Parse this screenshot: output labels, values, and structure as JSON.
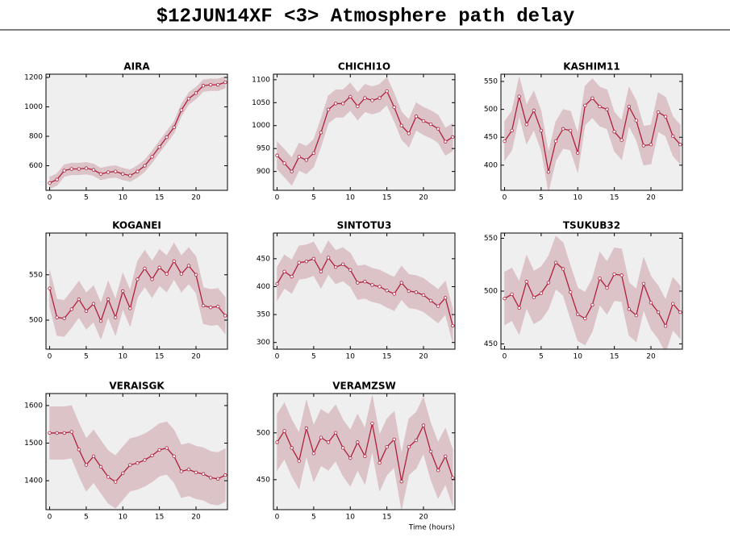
{
  "title": "$12JUN14XF <3>  Atmosphere path delay",
  "chart_data": [
    {
      "type": "line",
      "title": "AIRA",
      "color": "#b0203c",
      "band_color": "#dbc3c8",
      "x": [
        0,
        1,
        2,
        3,
        4,
        5,
        6,
        7,
        8,
        9,
        10,
        11,
        12,
        13,
        14,
        15,
        16,
        17,
        18,
        19,
        20,
        21,
        22,
        23,
        24
      ],
      "values": [
        483,
        506,
        567,
        578,
        578,
        583,
        572,
        544,
        556,
        561,
        544,
        533,
        561,
        600,
        661,
        728,
        794,
        861,
        978,
        1056,
        1094,
        1144,
        1150,
        1150,
        1167
      ],
      "error": [
        40,
        40,
        40,
        40,
        40,
        40,
        40,
        40,
        40,
        40,
        40,
        40,
        40,
        40,
        40,
        40,
        40,
        40,
        40,
        40,
        40,
        40,
        40,
        40,
        40
      ],
      "xlim": [
        -0.5,
        24.3
      ],
      "xticks": [
        0,
        5,
        10,
        15,
        20
      ],
      "ylim": [
        433,
        1222
      ],
      "yticks": [
        600,
        800,
        1000,
        1200
      ]
    },
    {
      "type": "line",
      "title": "CHICHI1O",
      "color": "#b0203c",
      "band_color": "#dbc3c8",
      "x": [
        0,
        1,
        2,
        3,
        4,
        5,
        6,
        7,
        8,
        9,
        10,
        11,
        12,
        13,
        14,
        15,
        16,
        17,
        18,
        19,
        20,
        21,
        22,
        23,
        24
      ],
      "values": [
        935,
        918,
        900,
        932,
        925,
        940,
        985,
        1035,
        1048,
        1048,
        1063,
        1042,
        1060,
        1055,
        1060,
        1075,
        1040,
        1000,
        983,
        1020,
        1010,
        1003,
        993,
        965,
        975
      ],
      "error": [
        30,
        30,
        30,
        30,
        30,
        30,
        30,
        30,
        30,
        30,
        30,
        30,
        30,
        30,
        30,
        30,
        30,
        30,
        30,
        30,
        30,
        30,
        30,
        30,
        30
      ],
      "xlim": [
        -0.5,
        24.3
      ],
      "xticks": [
        0,
        5,
        10,
        15,
        20
      ],
      "ylim": [
        859,
        1112
      ],
      "yticks": [
        900,
        950,
        1000,
        1050,
        1100
      ]
    },
    {
      "type": "line",
      "title": "KASHIM11",
      "color": "#b0203c",
      "band_color": "#dbc3c8",
      "x": [
        0,
        1,
        2,
        3,
        4,
        5,
        6,
        7,
        8,
        9,
        10,
        11,
        12,
        13,
        14,
        15,
        16,
        17,
        18,
        19,
        20,
        21,
        22,
        23,
        24
      ],
      "values": [
        443,
        462,
        523,
        473,
        498,
        462,
        388,
        443,
        465,
        462,
        422,
        507,
        520,
        505,
        500,
        460,
        445,
        505,
        480,
        435,
        437,
        495,
        487,
        452,
        437
      ],
      "error": [
        35,
        35,
        35,
        35,
        35,
        35,
        35,
        35,
        35,
        35,
        35,
        35,
        35,
        35,
        35,
        35,
        35,
        35,
        35,
        35,
        35,
        35,
        35,
        35,
        35
      ],
      "xlim": [
        -0.5,
        24.3
      ],
      "xticks": [
        0,
        5,
        10,
        15,
        20
      ],
      "ylim": [
        355,
        563
      ],
      "yticks": [
        400,
        450,
        500,
        550
      ]
    },
    {
      "type": "line",
      "title": "KOGANEI",
      "color": "#b0203c",
      "band_color": "#dbc3c8",
      "x": [
        0,
        1,
        2,
        3,
        4,
        5,
        6,
        7,
        8,
        9,
        10,
        11,
        12,
        13,
        14,
        15,
        16,
        17,
        18,
        19,
        20,
        21,
        22,
        23,
        24
      ],
      "values": [
        535,
        503,
        502,
        512,
        523,
        510,
        518,
        499,
        523,
        503,
        532,
        513,
        545,
        557,
        545,
        558,
        551,
        565,
        551,
        560,
        550,
        516,
        514,
        515,
        505
      ],
      "error": [
        20,
        20,
        20,
        20,
        20,
        20,
        20,
        20,
        20,
        20,
        20,
        20,
        20,
        20,
        20,
        20,
        20,
        20,
        20,
        20,
        20,
        20,
        20,
        20,
        20
      ],
      "xlim": [
        -0.5,
        24.3
      ],
      "xticks": [
        0,
        5,
        10,
        15,
        20
      ],
      "ylim": [
        468,
        596
      ],
      "yticks": [
        500,
        550
      ]
    },
    {
      "type": "line",
      "title": "SINTOTU3",
      "color": "#b0203c",
      "band_color": "#dbc3c8",
      "x": [
        0,
        1,
        2,
        3,
        4,
        5,
        6,
        7,
        8,
        9,
        10,
        11,
        12,
        13,
        14,
        15,
        16,
        17,
        18,
        19,
        20,
        21,
        22,
        23,
        24
      ],
      "values": [
        405,
        427,
        418,
        443,
        445,
        450,
        427,
        452,
        435,
        440,
        430,
        407,
        409,
        403,
        400,
        393,
        387,
        407,
        392,
        390,
        385,
        375,
        365,
        380,
        330
      ],
      "error": [
        30,
        30,
        30,
        30,
        30,
        30,
        30,
        30,
        30,
        30,
        30,
        30,
        30,
        30,
        30,
        30,
        30,
        30,
        30,
        30,
        30,
        30,
        30,
        30,
        30
      ],
      "xlim": [
        -0.5,
        24.3
      ],
      "xticks": [
        0,
        5,
        10,
        15,
        20
      ],
      "ylim": [
        288,
        496
      ],
      "yticks": [
        300,
        350,
        400,
        450
      ]
    },
    {
      "type": "line",
      "title": "TSUKUB32",
      "color": "#b0203c",
      "band_color": "#dbc3c8",
      "x": [
        0,
        1,
        2,
        3,
        4,
        5,
        6,
        7,
        8,
        9,
        10,
        11,
        12,
        13,
        14,
        15,
        16,
        17,
        18,
        19,
        20,
        21,
        22,
        23,
        24
      ],
      "values": [
        493,
        497,
        484,
        509,
        494,
        498,
        508,
        527,
        521,
        499,
        478,
        474,
        487,
        512,
        503,
        516,
        515,
        483,
        477,
        507,
        489,
        480,
        467,
        488,
        480
      ],
      "error": [
        25,
        25,
        25,
        25,
        25,
        25,
        25,
        25,
        25,
        25,
        25,
        25,
        25,
        25,
        25,
        25,
        25,
        25,
        25,
        25,
        25,
        25,
        25,
        25,
        25
      ],
      "xlim": [
        -0.5,
        24.3
      ],
      "xticks": [
        0,
        5,
        10,
        15,
        20
      ],
      "ylim": [
        445,
        555
      ],
      "yticks": [
        450,
        500,
        550
      ]
    },
    {
      "type": "line",
      "title": "VERAISGK",
      "color": "#b0203c",
      "band_color": "#dbc3c8",
      "x": [
        0,
        1,
        2,
        3,
        4,
        5,
        6,
        7,
        8,
        9,
        10,
        11,
        12,
        13,
        14,
        15,
        16,
        17,
        18,
        19,
        20,
        21,
        22,
        23,
        24
      ],
      "values": [
        1527,
        1527,
        1527,
        1530,
        1483,
        1442,
        1465,
        1437,
        1410,
        1397,
        1420,
        1442,
        1447,
        1455,
        1467,
        1482,
        1487,
        1465,
        1425,
        1430,
        1422,
        1418,
        1408,
        1405,
        1415
      ],
      "error": [
        70,
        70,
        70,
        70,
        70,
        70,
        70,
        70,
        70,
        70,
        70,
        70,
        70,
        70,
        70,
        70,
        70,
        70,
        70,
        70,
        70,
        70,
        70,
        70,
        70
      ],
      "xlim": [
        -0.5,
        24.3
      ],
      "xticks": [
        0,
        5,
        10,
        15,
        20
      ],
      "ylim": [
        1323,
        1632
      ],
      "yticks": [
        1400,
        1500,
        1600
      ]
    },
    {
      "type": "line",
      "title": "VERAMZSW",
      "x_label": "Time (hours)",
      "color": "#b0203c",
      "band_color": "#dbc3c8",
      "x": [
        0,
        1,
        2,
        3,
        4,
        5,
        6,
        7,
        8,
        9,
        10,
        11,
        12,
        13,
        14,
        15,
        16,
        17,
        18,
        19,
        20,
        21,
        22,
        23,
        24
      ],
      "values": [
        490,
        502,
        484,
        470,
        505,
        478,
        495,
        490,
        500,
        484,
        473,
        490,
        475,
        510,
        468,
        485,
        493,
        448,
        485,
        492,
        508,
        480,
        460,
        475,
        452
      ],
      "error": [
        30,
        30,
        30,
        30,
        30,
        30,
        30,
        30,
        30,
        30,
        30,
        30,
        30,
        30,
        30,
        30,
        30,
        30,
        30,
        30,
        30,
        30,
        30,
        30,
        30
      ],
      "xlim": [
        -0.5,
        24.3
      ],
      "xticks": [
        0,
        5,
        10,
        15,
        20
      ],
      "ylim": [
        418,
        542
      ],
      "yticks": [
        450,
        500
      ]
    }
  ]
}
